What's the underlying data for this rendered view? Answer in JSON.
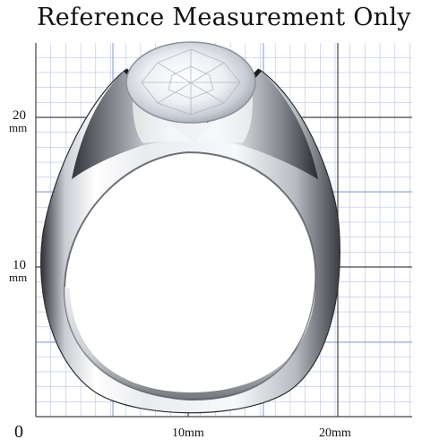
{
  "title": "Reference Measurement Only",
  "y_axis_labels": {
    "twenty_value": "20",
    "twenty_unit": "mm",
    "ten_value": "10",
    "ten_unit": "mm",
    "origin": "0"
  },
  "x_axis_labels": {
    "ten": "10mm",
    "twenty": "20mm"
  },
  "colors": {
    "grid_minor": "#b9c2e4",
    "grid_major": "#444444",
    "grid_blue": "#8fa0d6",
    "metal_light": "#f3f4f6",
    "metal_dark": "#3d3f44"
  },
  "image_subject": "silver ring with round clear stone"
}
